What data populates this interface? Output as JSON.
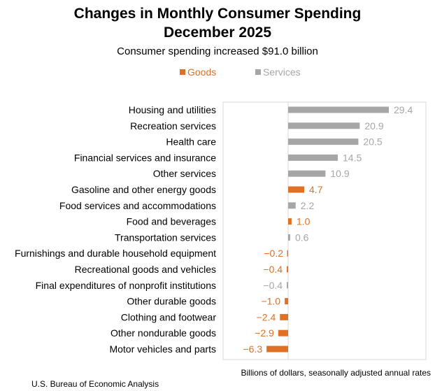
{
  "chart_data": {
    "type": "bar",
    "orientation": "horizontal",
    "title": "Changes in Monthly Consumer Spending",
    "title_line_2": "December 2025",
    "subtitle": "Consumer spending increased $91.0 billion",
    "xlabel": "Billions of dollars, seasonally adjusted annual rates",
    "ylabel": "",
    "source": "U.S. Bureau of Economic Analysis",
    "legend": [
      {
        "name": "Goods",
        "color": "#E07023"
      },
      {
        "name": "Services",
        "color": "#A6A6A6"
      }
    ],
    "xlim": [
      -7.5,
      40
    ],
    "categories": [
      "Housing and utilities",
      "Recreation services",
      "Health care",
      "Financial services and insurance",
      "Other services",
      "Gasoline and other energy goods",
      "Food services and accommodations",
      "Food and beverages",
      "Transportation services",
      "Furnishings and durable household equipment",
      "Recreational goods and vehicles",
      "Final expenditures of nonprofit institutions",
      "Other durable goods",
      "Clothing and footwear",
      "Other nondurable goods",
      "Motor vehicles and parts"
    ],
    "values": [
      29.4,
      20.9,
      20.5,
      14.5,
      10.9,
      4.7,
      2.2,
      1.0,
      0.6,
      -0.2,
      -0.4,
      -0.4,
      -1.0,
      -2.4,
      -2.9,
      -6.3
    ],
    "value_labels": [
      "29.4",
      "20.9",
      "20.5",
      "14.5",
      "10.9",
      "4.7",
      "2.2",
      "1.0",
      "0.6",
      "−0.2",
      "−0.4",
      "−0.4",
      "−1.0",
      "−2.4",
      "−2.9",
      "−6.3"
    ],
    "series_type": [
      "Services",
      "Services",
      "Services",
      "Services",
      "Services",
      "Goods",
      "Services",
      "Goods",
      "Services",
      "Goods",
      "Goods",
      "Services",
      "Goods",
      "Goods",
      "Goods",
      "Goods"
    ],
    "grid": false
  }
}
